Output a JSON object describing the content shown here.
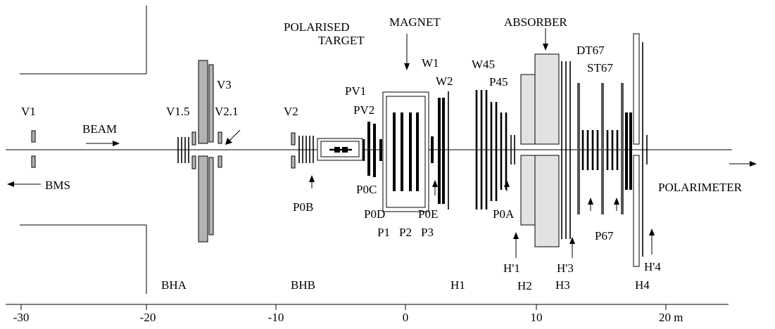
{
  "labels": {
    "v1": "V1",
    "beam": "BEAM",
    "bms": "BMS",
    "v15": "V1.5",
    "v3": "V3",
    "v21": "V2.1",
    "v2": "V2",
    "polarised": "POLARISED",
    "target": "TARGET",
    "magnet": "MAGNET",
    "pv1": "PV1",
    "pv2": "PV2",
    "w1": "W1",
    "w2": "W2",
    "w45": "W45",
    "p45": "P45",
    "absorber": "ABSORBER",
    "dt67": "DT67",
    "st67": "ST67",
    "polarimeter": "POLARIMETER",
    "p0b": "P0B",
    "p0c": "P0C",
    "p0d": "P0D",
    "p0e": "P0E",
    "p1": "P1",
    "p2": "P2",
    "p3": "P3",
    "p0a": "P0A",
    "p67": "P67",
    "h1p": "H'1",
    "h2": "H2",
    "h3p": "H'3",
    "h3": "H3",
    "h4p": "H'4",
    "h4": "H4",
    "bha": "BHA",
    "bhb": "BHB",
    "h1": "H1"
  },
  "axis": {
    "ticks": [
      "-30",
      "-20",
      "-10",
      "0",
      "10",
      "20 m"
    ]
  }
}
